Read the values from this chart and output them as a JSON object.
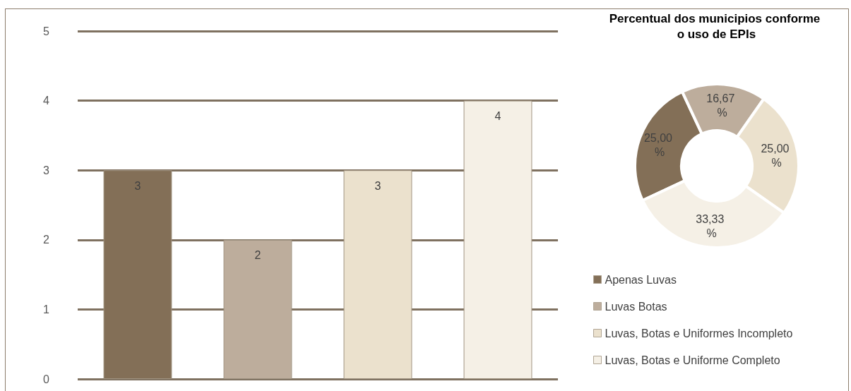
{
  "chart_data": [
    {
      "type": "bar",
      "categories": [
        null,
        null,
        null,
        null
      ],
      "values": [
        3,
        2,
        3,
        4
      ],
      "colors": [
        "#836f57",
        "#bdad9c",
        "#ebe1cd",
        "#f5f0e6"
      ],
      "data_labels": true,
      "ylim": [
        0,
        5
      ],
      "yticks": [
        0,
        1,
        2,
        3,
        4,
        5
      ],
      "grid": "y"
    },
    {
      "type": "donut",
      "title": "Percentual dos municipios conforme o uso de EPIs",
      "categories": [
        "Apenas Luvas",
        "Luvas Botas",
        "Luvas, Botas e Uniformes Incompleto",
        "Luvas, Botas e Uniforme Completo"
      ],
      "values": [
        25.0,
        16.67,
        25.0,
        33.33
      ],
      "colors": [
        "#836f57",
        "#bdad9c",
        "#ebe1cd",
        "#f5f0e6"
      ],
      "value_labels": [
        "25,00 %",
        "16,67 %",
        "25,00 %",
        "33,33 %"
      ],
      "legend": "bottom"
    }
  ]
}
